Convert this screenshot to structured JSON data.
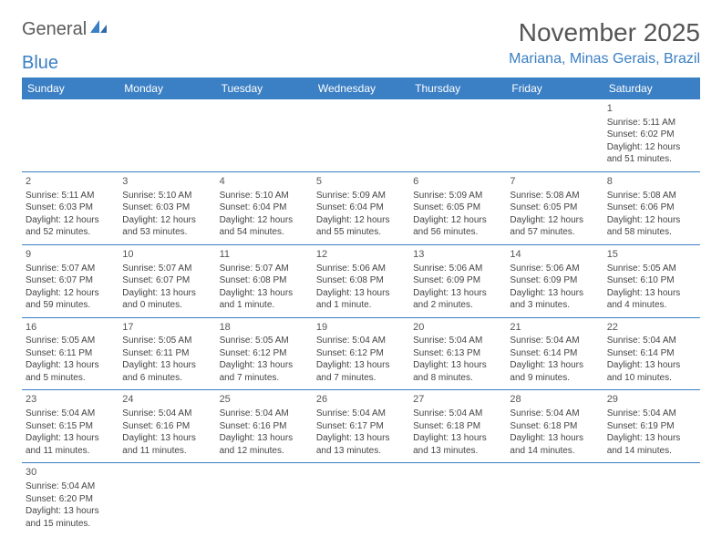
{
  "logo": {
    "text1": "General",
    "text2": "Blue"
  },
  "title": "November 2025",
  "location": "Mariana, Minas Gerais, Brazil",
  "colors": {
    "header_bg": "#3b7fc4",
    "header_fg": "#ffffff",
    "grid_line": "#3b7fc4",
    "text": "#444444",
    "title": "#555555"
  },
  "day_headers": [
    "Sunday",
    "Monday",
    "Tuesday",
    "Wednesday",
    "Thursday",
    "Friday",
    "Saturday"
  ],
  "weeks": [
    [
      null,
      null,
      null,
      null,
      null,
      null,
      {
        "n": "1",
        "sr": "5:11 AM",
        "ss": "6:02 PM",
        "dl": "12 hours and 51 minutes."
      }
    ],
    [
      {
        "n": "2",
        "sr": "5:11 AM",
        "ss": "6:03 PM",
        "dl": "12 hours and 52 minutes."
      },
      {
        "n": "3",
        "sr": "5:10 AM",
        "ss": "6:03 PM",
        "dl": "12 hours and 53 minutes."
      },
      {
        "n": "4",
        "sr": "5:10 AM",
        "ss": "6:04 PM",
        "dl": "12 hours and 54 minutes."
      },
      {
        "n": "5",
        "sr": "5:09 AM",
        "ss": "6:04 PM",
        "dl": "12 hours and 55 minutes."
      },
      {
        "n": "6",
        "sr": "5:09 AM",
        "ss": "6:05 PM",
        "dl": "12 hours and 56 minutes."
      },
      {
        "n": "7",
        "sr": "5:08 AM",
        "ss": "6:05 PM",
        "dl": "12 hours and 57 minutes."
      },
      {
        "n": "8",
        "sr": "5:08 AM",
        "ss": "6:06 PM",
        "dl": "12 hours and 58 minutes."
      }
    ],
    [
      {
        "n": "9",
        "sr": "5:07 AM",
        "ss": "6:07 PM",
        "dl": "12 hours and 59 minutes."
      },
      {
        "n": "10",
        "sr": "5:07 AM",
        "ss": "6:07 PM",
        "dl": "13 hours and 0 minutes."
      },
      {
        "n": "11",
        "sr": "5:07 AM",
        "ss": "6:08 PM",
        "dl": "13 hours and 1 minute."
      },
      {
        "n": "12",
        "sr": "5:06 AM",
        "ss": "6:08 PM",
        "dl": "13 hours and 1 minute."
      },
      {
        "n": "13",
        "sr": "5:06 AM",
        "ss": "6:09 PM",
        "dl": "13 hours and 2 minutes."
      },
      {
        "n": "14",
        "sr": "5:06 AM",
        "ss": "6:09 PM",
        "dl": "13 hours and 3 minutes."
      },
      {
        "n": "15",
        "sr": "5:05 AM",
        "ss": "6:10 PM",
        "dl": "13 hours and 4 minutes."
      }
    ],
    [
      {
        "n": "16",
        "sr": "5:05 AM",
        "ss": "6:11 PM",
        "dl": "13 hours and 5 minutes."
      },
      {
        "n": "17",
        "sr": "5:05 AM",
        "ss": "6:11 PM",
        "dl": "13 hours and 6 minutes."
      },
      {
        "n": "18",
        "sr": "5:05 AM",
        "ss": "6:12 PM",
        "dl": "13 hours and 7 minutes."
      },
      {
        "n": "19",
        "sr": "5:04 AM",
        "ss": "6:12 PM",
        "dl": "13 hours and 7 minutes."
      },
      {
        "n": "20",
        "sr": "5:04 AM",
        "ss": "6:13 PM",
        "dl": "13 hours and 8 minutes."
      },
      {
        "n": "21",
        "sr": "5:04 AM",
        "ss": "6:14 PM",
        "dl": "13 hours and 9 minutes."
      },
      {
        "n": "22",
        "sr": "5:04 AM",
        "ss": "6:14 PM",
        "dl": "13 hours and 10 minutes."
      }
    ],
    [
      {
        "n": "23",
        "sr": "5:04 AM",
        "ss": "6:15 PM",
        "dl": "13 hours and 11 minutes."
      },
      {
        "n": "24",
        "sr": "5:04 AM",
        "ss": "6:16 PM",
        "dl": "13 hours and 11 minutes."
      },
      {
        "n": "25",
        "sr": "5:04 AM",
        "ss": "6:16 PM",
        "dl": "13 hours and 12 minutes."
      },
      {
        "n": "26",
        "sr": "5:04 AM",
        "ss": "6:17 PM",
        "dl": "13 hours and 13 minutes."
      },
      {
        "n": "27",
        "sr": "5:04 AM",
        "ss": "6:18 PM",
        "dl": "13 hours and 13 minutes."
      },
      {
        "n": "28",
        "sr": "5:04 AM",
        "ss": "6:18 PM",
        "dl": "13 hours and 14 minutes."
      },
      {
        "n": "29",
        "sr": "5:04 AM",
        "ss": "6:19 PM",
        "dl": "13 hours and 14 minutes."
      }
    ],
    [
      {
        "n": "30",
        "sr": "5:04 AM",
        "ss": "6:20 PM",
        "dl": "13 hours and 15 minutes."
      },
      null,
      null,
      null,
      null,
      null,
      null
    ]
  ],
  "labels": {
    "sunrise": "Sunrise:",
    "sunset": "Sunset:",
    "daylight": "Daylight:"
  }
}
